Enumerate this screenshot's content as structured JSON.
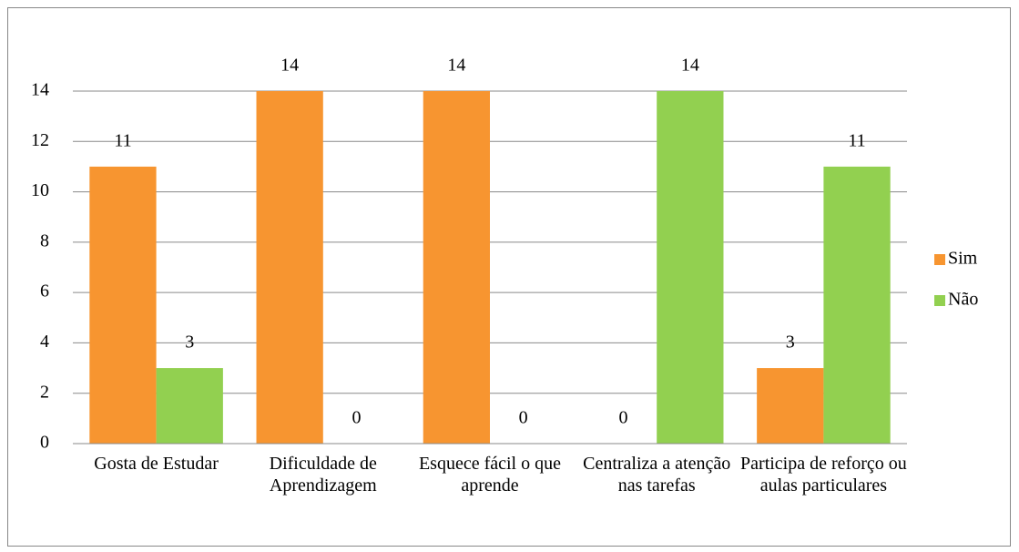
{
  "chart_data": {
    "type": "bar",
    "categories": [
      "Gosta de Estudar",
      "Dificuldade de Aprendizagem",
      "Esquece fácil o que aprende",
      "Centraliza a atenção nas tarefas",
      "Participa de reforço ou aulas particulares"
    ],
    "series": [
      {
        "name": "Sim",
        "color": "#f79530",
        "values": [
          11,
          14,
          14,
          0,
          3
        ]
      },
      {
        "name": "Não",
        "color": "#92d050",
        "values": [
          3,
          0,
          0,
          14,
          11
        ]
      }
    ],
    "ylim": [
      0,
      14
    ],
    "yticks": [
      0,
      2,
      4,
      6,
      8,
      10,
      12,
      14
    ],
    "grid": true,
    "legend": "right"
  }
}
